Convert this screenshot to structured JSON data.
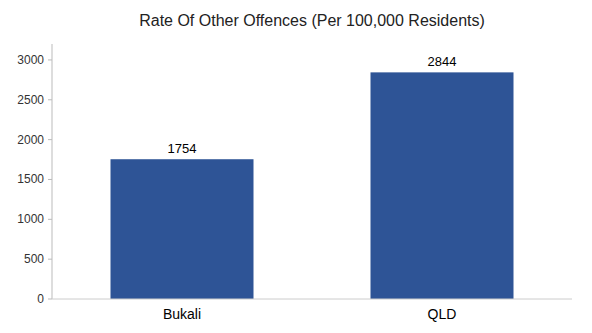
{
  "chart_data": {
    "type": "bar",
    "title": "Rate Of Other Offences (Per 100,000 Residents)",
    "categories": [
      "Bukali",
      "QLD"
    ],
    "values": [
      1754,
      2844
    ],
    "color": "#2e5496",
    "ylim": [
      0,
      3200
    ],
    "yticks": [
      0,
      500,
      1000,
      1500,
      2000,
      2500,
      3000
    ],
    "grid": false,
    "data_labels": true
  }
}
